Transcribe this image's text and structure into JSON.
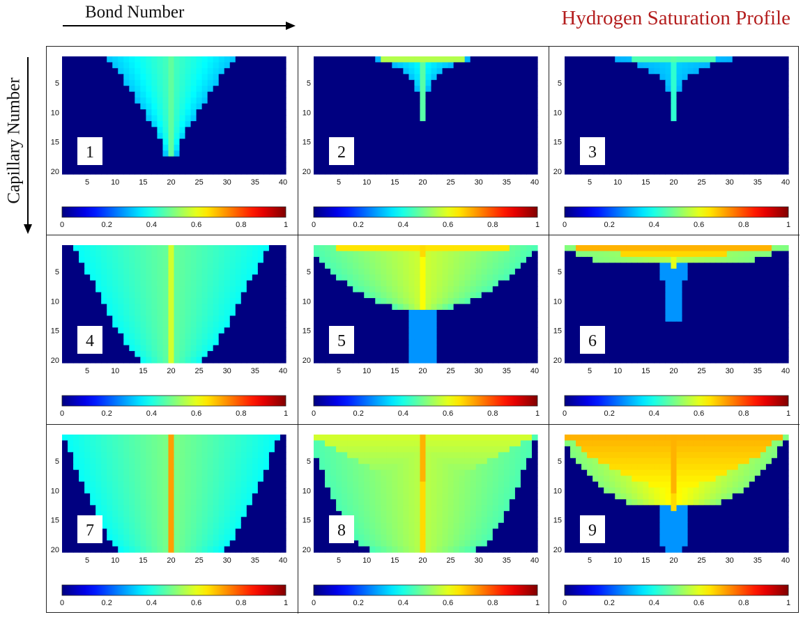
{
  "header": {
    "x_axis_label": "Bond Number",
    "y_axis_label": "Capillary Number",
    "title": "Hydrogen Saturation Profile"
  },
  "chart_data": {
    "type": "heatmap",
    "title": "Hydrogen Saturation Profile",
    "xlabel": "Bond Number",
    "ylabel": "Capillary Number",
    "grid": false,
    "colormap": "jet",
    "x_ticks": [
      5,
      10,
      15,
      20,
      25,
      30,
      35,
      40
    ],
    "y_ticks": [
      5,
      10,
      15,
      20
    ],
    "xlim": [
      0.5,
      40.5
    ],
    "ylim": [
      0.5,
      20.5
    ],
    "colorbar": {
      "ticks": [
        0,
        0.2,
        0.4,
        0.6,
        0.8,
        1
      ],
      "labels": [
        "0",
        "0.2",
        "0.4",
        "0.6",
        "0.8",
        "1"
      ],
      "range": [
        0,
        1
      ]
    },
    "colors": {
      "low": "#00008f",
      "high": "#800000",
      "border": "#222222"
    },
    "panels": [
      {
        "label": "1",
        "center": 20,
        "width_top": 11,
        "width_bottom": 1,
        "width_power": 1.2,
        "depth": 17,
        "ridge_value": 0.47,
        "body_value": 0.45,
        "edge_value": 0.32,
        "bulb_width": 0,
        "bulb_depth": 0,
        "bulb_value": 0.3,
        "top_band_depth": 0,
        "top_band_value": 0,
        "top_band_tail": 0
      },
      {
        "label": "2",
        "center": 20,
        "width_top": 8,
        "width_bottom": 0.5,
        "width_power": 3.5,
        "depth": 11,
        "ridge_value": 0.46,
        "body_value": 0.38,
        "edge_value": 0.3,
        "bulb_width": 0,
        "bulb_depth": 0,
        "bulb_value": 0.3,
        "top_band_depth": 1.1,
        "top_band_value": 0.55,
        "top_band_tail": 11
      },
      {
        "label": "3",
        "center": 20,
        "width_top": 10,
        "width_bottom": 0.4,
        "width_power": 4,
        "depth": 11,
        "ridge_value": 0.42,
        "body_value": 0.33,
        "edge_value": 0.3,
        "bulb_width": 0,
        "bulb_depth": 0,
        "bulb_value": 0.3,
        "top_band_depth": 0.8,
        "top_band_value": 0.45,
        "top_band_tail": 13
      },
      {
        "label": "4",
        "center": 20,
        "width_top": 17,
        "width_bottom": 5.5,
        "width_power": 0.8,
        "depth": 20,
        "ridge_value": 0.58,
        "body_value": 0.48,
        "edge_value": 0.38,
        "bulb_width": 0,
        "bulb_depth": 0,
        "bulb_value": 0.3,
        "top_band_depth": 0,
        "top_band_value": 0,
        "top_band_tail": 0
      },
      {
        "label": "5",
        "center": 20,
        "width_top": 20,
        "width_bottom": 0.5,
        "width_power": 0.45,
        "depth": 11.5,
        "ridge_value": 0.62,
        "body_value": 0.58,
        "edge_value": 0.45,
        "bulb_width": 3,
        "bulb_depth": 20,
        "bulb_value": 0.27,
        "top_band_depth": 1.5,
        "top_band_value": 0.65,
        "top_band_tail": 20
      },
      {
        "label": "6",
        "center": 20,
        "width_top": 20,
        "width_bottom": 0.5,
        "width_power": 0.3,
        "depth": 4,
        "ridge_value": 0.6,
        "body_value": 0.55,
        "edge_value": 0.5,
        "bulb_width": 2.2,
        "bulb_depth": 13.5,
        "bulb_value": 0.27,
        "top_band_depth": 2.2,
        "top_band_value": 0.7,
        "top_band_tail": 20
      },
      {
        "label": "7",
        "center": 20,
        "width_top": 19,
        "width_bottom": 9,
        "width_power": 0.7,
        "depth": 20,
        "ridge_value": 0.72,
        "body_value": 0.5,
        "edge_value": 0.38,
        "bulb_width": 0,
        "bulb_depth": 0,
        "bulb_value": 0.3,
        "top_band_depth": 0,
        "top_band_value": 0,
        "top_band_tail": 0
      },
      {
        "label": "8",
        "center": 20,
        "width_top": 20,
        "width_bottom": 9,
        "width_power": 0.55,
        "depth": 20,
        "ridge_value": 0.66,
        "body_value": 0.56,
        "edge_value": 0.45,
        "bulb_width": 0,
        "bulb_depth": 0,
        "bulb_value": 0.3,
        "top_band_depth": 8,
        "top_band_value": 0.58,
        "top_band_tail": 20
      },
      {
        "label": "9",
        "center": 20,
        "width_top": 20,
        "width_bottom": 0.5,
        "width_power": 0.35,
        "depth": 13,
        "ridge_value": 0.66,
        "body_value": 0.64,
        "edge_value": 0.5,
        "bulb_width": 2.8,
        "bulb_depth": 20,
        "bulb_value": 0.27,
        "top_band_depth": 9.5,
        "top_band_value": 0.7,
        "top_band_tail": 20
      }
    ]
  }
}
